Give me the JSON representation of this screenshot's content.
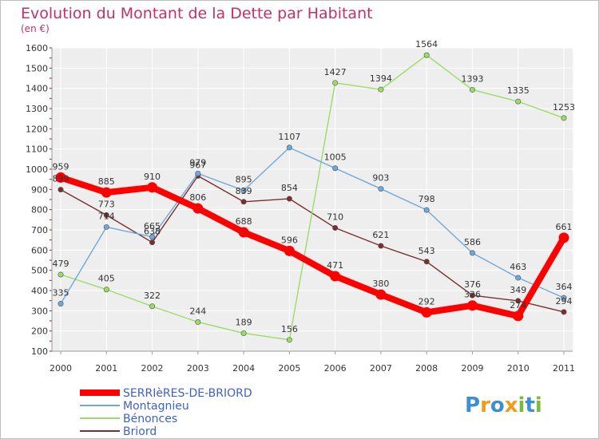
{
  "chart_data": {
    "type": "line",
    "title": "Evolution du Montant de la Dette par Habitant",
    "subtitle": "(en €)",
    "xlabel": "",
    "ylabel": "",
    "x": [
      "2000",
      "2001",
      "2002",
      "2003",
      "2004",
      "2005",
      "2006",
      "2007",
      "2008",
      "2009",
      "2010",
      "2011"
    ],
    "ylim": [
      100,
      1600
    ],
    "yticks": [
      100,
      200,
      300,
      400,
      500,
      600,
      700,
      800,
      900,
      1000,
      1100,
      1200,
      1300,
      1400,
      1500,
      1600
    ],
    "grid": true,
    "legend_position": "bottom-left",
    "series": [
      {
        "name": "SERRIèRES-DE-BRIORD",
        "color": "#ff0000",
        "values": [
          959,
          885,
          910,
          806,
          688,
          596,
          471,
          380,
          292,
          326,
          274,
          661
        ],
        "labels": [
          "959",
          "885",
          "910",
          "806",
          "688",
          "596",
          "471",
          "380",
          "292",
          "326",
          "274",
          "661"
        ]
      },
      {
        "name": "Montagnieu",
        "color": "#6fa8dc",
        "values": [
          335,
          714,
          665,
          979,
          895,
          1107,
          1005,
          903,
          798,
          586,
          463,
          364
        ],
        "labels": [
          "335",
          "714",
          "665",
          "979",
          "895",
          "1107",
          "1005",
          "903",
          "798",
          "586",
          "463",
          "364"
        ]
      },
      {
        "name": "Bénonces",
        "color": "#99dd66",
        "values": [
          479,
          405,
          322,
          244,
          189,
          156,
          1427,
          1394,
          1564,
          1393,
          1335,
          1253
        ],
        "labels": [
          "479",
          "405",
          "322",
          "244",
          "189",
          "156",
          "1427",
          "1394",
          "1564",
          "1393",
          "1335",
          "1253"
        ]
      },
      {
        "name": "Briord",
        "color": "#7a2e2e",
        "values": [
          899,
          773,
          638,
          967,
          839,
          854,
          710,
          621,
          543,
          376,
          349,
          294
        ],
        "labels": [
          "899",
          "773",
          "638",
          "967",
          "839",
          "854",
          "710",
          "621",
          "543",
          "376",
          "349",
          "294"
        ]
      }
    ]
  },
  "logo": {
    "text": "Proxiti"
  }
}
